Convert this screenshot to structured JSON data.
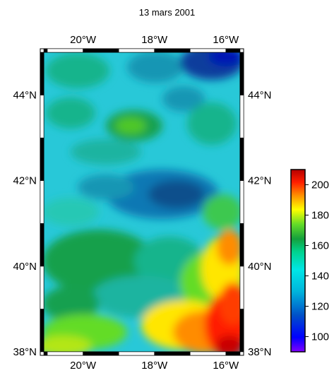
{
  "title": "13 mars 2001",
  "map": {
    "lon_ticks": [
      {
        "lon": -20,
        "label": "20°W"
      },
      {
        "lon": -18,
        "label": "18°W"
      },
      {
        "lon": -16,
        "label": "16°W"
      }
    ],
    "lat_ticks": [
      {
        "lat": 44,
        "label": "44°N"
      },
      {
        "lat": 42,
        "label": "42°N"
      },
      {
        "lat": 40,
        "label": "40°N"
      },
      {
        "lat": 38,
        "label": "38°N"
      }
    ],
    "lon_range": [
      -21.1,
      -15.6
    ],
    "lat_range": [
      38,
      45.0
    ]
  },
  "colorbar": {
    "ticks": [
      100,
      120,
      140,
      160,
      180,
      200
    ],
    "range": [
      90,
      210
    ],
    "colors": [
      "#8000ff",
      "#0000ff",
      "#0050c8",
      "#00b4dc",
      "#00e6e6",
      "#00d28c",
      "#14a03c",
      "#64dc28",
      "#ffff00",
      "#ff8c00",
      "#ff1e00",
      "#b40000"
    ]
  }
}
